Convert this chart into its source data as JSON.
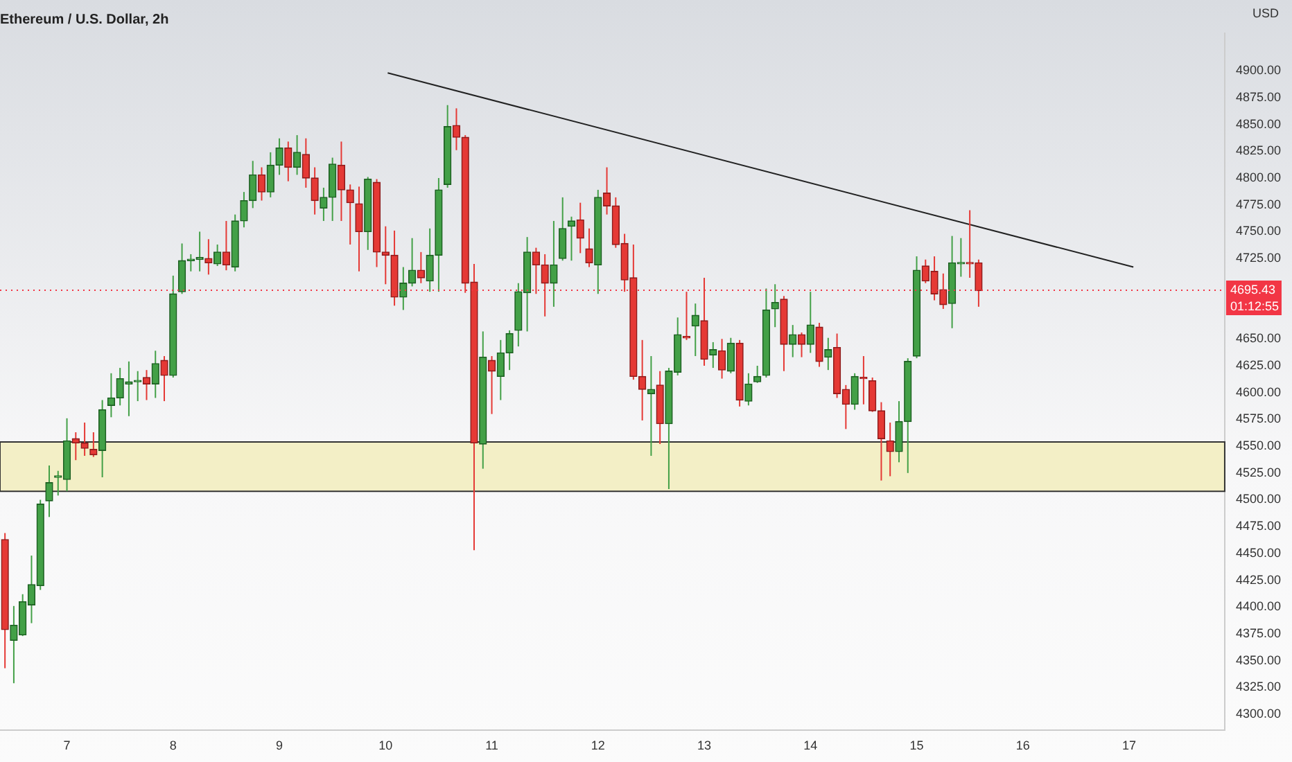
{
  "chart_data": {
    "type": "candlestick",
    "title": "Ethereum / U.S. Dollar, 2h",
    "ylabel": "USD",
    "x": [
      6.4167,
      6.5,
      6.5833,
      6.6667,
      6.75,
      6.8333,
      6.9167,
      7,
      7.0833,
      7.1667,
      7.25,
      7.3333,
      7.4167,
      7.5,
      7.5833,
      7.6667,
      7.75,
      7.8333,
      7.9167,
      8,
      8.0833,
      8.1667,
      8.25,
      8.3333,
      8.4167,
      8.5,
      8.5833,
      8.6667,
      8.75,
      8.8333,
      8.9167,
      9,
      9.0833,
      9.1667,
      9.25,
      9.3333,
      9.4167,
      9.5,
      9.5833,
      9.6667,
      9.75,
      9.8333,
      9.9167,
      10,
      10.0833,
      10.1667,
      10.25,
      10.3333,
      10.4167,
      10.5,
      10.5833,
      10.6667,
      10.75,
      10.8333,
      10.9167,
      11,
      11.0833,
      11.1667,
      11.25,
      11.3333,
      11.4167,
      11.5,
      11.5833,
      11.6667,
      11.75,
      11.8333,
      11.9167,
      12,
      12.0833,
      12.1667,
      12.25,
      12.3333,
      12.4167,
      12.5,
      12.5833,
      12.6667,
      12.75,
      12.8333,
      12.9167,
      13,
      13.0833,
      13.1667,
      13.25,
      13.3333,
      13.4167,
      13.5,
      13.5833,
      13.6667,
      13.75,
      13.8333,
      13.9167,
      14,
      14.0833,
      14.1667,
      14.25,
      14.3333,
      14.4167,
      14.5,
      14.5833,
      14.6667,
      14.75,
      14.8333,
      14.9167,
      15,
      15.0833,
      15.1667,
      15.25,
      15.3333,
      15.4167,
      15.5,
      15.5833
    ],
    "ohlc": [
      [
        4463,
        4469,
        4343,
        4379
      ],
      [
        4369,
        4401,
        4329,
        4383
      ],
      [
        4374,
        4412,
        4373,
        4405
      ],
      [
        4402,
        4448,
        4385,
        4421
      ],
      [
        4420,
        4500,
        4416,
        4496
      ],
      [
        4499,
        4532,
        4484,
        4516
      ],
      [
        4521,
        4527,
        4504,
        4522
      ],
      [
        4519,
        4576,
        4508,
        4555
      ],
      [
        4557,
        4563,
        4537,
        4553
      ],
      [
        4553,
        4572,
        4541,
        4548
      ],
      [
        4547,
        4563,
        4540,
        4542
      ],
      [
        4546,
        4593,
        4521,
        4584
      ],
      [
        4588,
        4618,
        4577,
        4595
      ],
      [
        4595,
        4623,
        4588,
        4613
      ],
      [
        4608,
        4629,
        4578,
        4610
      ],
      [
        4610,
        4620,
        4592,
        4611
      ],
      [
        4614,
        4621,
        4593,
        4608
      ],
      [
        4608,
        4639,
        4595,
        4627
      ],
      [
        4630,
        4634,
        4592,
        4616
      ],
      [
        4616,
        4709,
        4614,
        4692
      ],
      [
        4694,
        4739,
        4692,
        4723
      ],
      [
        4723,
        4729,
        4713,
        4724
      ],
      [
        4724,
        4750,
        4713,
        4726
      ],
      [
        4725,
        4743,
        4710,
        4721
      ],
      [
        4720,
        4738,
        4718,
        4731
      ],
      [
        4731,
        4760,
        4714,
        4719
      ],
      [
        4717,
        4766,
        4713,
        4760
      ],
      [
        4760,
        4787,
        4754,
        4779
      ],
      [
        4779,
        4816,
        4772,
        4803
      ],
      [
        4803,
        4810,
        4779,
        4787
      ],
      [
        4787,
        4824,
        4782,
        4812
      ],
      [
        4812,
        4837,
        4803,
        4828
      ],
      [
        4828,
        4834,
        4797,
        4810
      ],
      [
        4810,
        4840,
        4803,
        4824
      ],
      [
        4822,
        4837,
        4791,
        4800
      ],
      [
        4800,
        4810,
        4766,
        4779
      ],
      [
        4772,
        4791,
        4760,
        4782
      ],
      [
        4782,
        4819,
        4760,
        4813
      ],
      [
        4812,
        4834,
        4760,
        4789
      ],
      [
        4789,
        4794,
        4738,
        4777
      ],
      [
        4776,
        4792,
        4713,
        4750
      ],
      [
        4750,
        4801,
        4733,
        4799
      ],
      [
        4796,
        4799,
        4717,
        4731
      ],
      [
        4731,
        4755,
        4701,
        4728
      ],
      [
        4728,
        4751,
        4681,
        4689
      ],
      [
        4689,
        4717,
        4677,
        4702
      ],
      [
        4702,
        4744,
        4699,
        4714
      ],
      [
        4714,
        4731,
        4702,
        4707
      ],
      [
        4704,
        4753,
        4694,
        4728
      ],
      [
        4728,
        4800,
        4694,
        4789
      ],
      [
        4794,
        4868,
        4791,
        4848
      ],
      [
        4849,
        4865,
        4826,
        4838
      ],
      [
        4838,
        4840,
        4693,
        4702
      ],
      [
        4703,
        4720,
        4453,
        4553
      ],
      [
        4552,
        4657,
        4529,
        4633
      ],
      [
        4630,
        4634,
        4580,
        4620
      ],
      [
        4615,
        4649,
        4593,
        4637
      ],
      [
        4637,
        4658,
        4621,
        4655
      ],
      [
        4658,
        4702,
        4643,
        4694
      ],
      [
        4693,
        4745,
        4657,
        4731
      ],
      [
        4731,
        4735,
        4692,
        4719
      ],
      [
        4719,
        4729,
        4671,
        4702
      ],
      [
        4702,
        4760,
        4680,
        4719
      ],
      [
        4725,
        4782,
        4723,
        4753
      ],
      [
        4755,
        4764,
        4723,
        4760
      ],
      [
        4761,
        4777,
        4730,
        4744
      ],
      [
        4734,
        4753,
        4717,
        4721
      ],
      [
        4719,
        4789,
        4692,
        4782
      ],
      [
        4786,
        4810,
        4766,
        4774
      ],
      [
        4774,
        4782,
        4735,
        4738
      ],
      [
        4739,
        4748,
        4694,
        4705
      ],
      [
        4707,
        4738,
        4612,
        4615
      ],
      [
        4615,
        4649,
        4574,
        4603
      ],
      [
        4599,
        4634,
        4541,
        4603
      ],
      [
        4607,
        4620,
        4552,
        4571
      ],
      [
        4571,
        4623,
        4510,
        4620
      ],
      [
        4619,
        4670,
        4616,
        4654
      ],
      [
        4652,
        4694,
        4649,
        4651
      ],
      [
        4662,
        4683,
        4634,
        4672
      ],
      [
        4667,
        4707,
        4625,
        4631
      ],
      [
        4635,
        4647,
        4623,
        4640
      ],
      [
        4639,
        4650,
        4613,
        4621
      ],
      [
        4620,
        4651,
        4618,
        4646
      ],
      [
        4646,
        4649,
        4587,
        4593
      ],
      [
        4592,
        4618,
        4588,
        4608
      ],
      [
        4610,
        4625,
        4609,
        4615
      ],
      [
        4616,
        4697,
        4614,
        4677
      ],
      [
        4678,
        4701,
        4661,
        4684
      ],
      [
        4687,
        4690,
        4620,
        4645
      ],
      [
        4645,
        4663,
        4633,
        4654
      ],
      [
        4654,
        4656,
        4633,
        4645
      ],
      [
        4645,
        4694,
        4637,
        4663
      ],
      [
        4661,
        4665,
        4624,
        4629
      ],
      [
        4633,
        4651,
        4621,
        4640
      ],
      [
        4642,
        4655,
        4595,
        4599
      ],
      [
        4603,
        4607,
        4566,
        4589
      ],
      [
        4589,
        4618,
        4584,
        4615
      ],
      [
        4614,
        4634,
        4589,
        4613
      ],
      [
        4611,
        4614,
        4582,
        4583
      ],
      [
        4583,
        4591,
        4518,
        4557
      ],
      [
        4555,
        4572,
        4522,
        4545
      ],
      [
        4545,
        4592,
        4535,
        4573
      ],
      [
        4573,
        4632,
        4525,
        4629
      ],
      [
        4634,
        4727,
        4632,
        4714
      ],
      [
        4718,
        4724,
        4702,
        4704
      ],
      [
        4713,
        4727,
        4686,
        4692
      ],
      [
        4696,
        4711,
        4678,
        4682
      ],
      [
        4683,
        4746,
        4660,
        4721
      ],
      [
        4720,
        4744,
        4708,
        4721
      ],
      [
        4721,
        4770,
        4707,
        4720
      ],
      [
        4721,
        4724,
        4680,
        4695
      ]
    ],
    "series": [
      {
        "type": "line",
        "x": [
          10.02,
          17.04
        ],
        "values": [
          4898,
          4717
        ],
        "color": "#222222"
      }
    ],
    "bands": [
      {
        "axis": "y",
        "from": 4508,
        "to": 4554,
        "color": "#f3efc6"
      }
    ],
    "ref_lines": [
      {
        "axis": "y",
        "value": 4695.43,
        "label": "4695.43",
        "color": "#f23645",
        "line_style": "dotted"
      }
    ],
    "annotations": [
      "01:12:55"
    ],
    "xlim": [
      6.37,
      17.9
    ],
    "xticks": [
      7,
      8,
      9,
      10,
      11,
      12,
      13,
      14,
      15,
      16,
      17
    ],
    "ylim": [
      4285,
      4935
    ],
    "yticks": [
      {
        "value": 4300,
        "label": "4300.00"
      },
      {
        "value": 4325,
        "label": "4325.00"
      },
      {
        "value": 4350,
        "label": "4350.00"
      },
      {
        "value": 4375,
        "label": "4375.00"
      },
      {
        "value": 4400,
        "label": "4400.00"
      },
      {
        "value": 4425,
        "label": "4425.00"
      },
      {
        "value": 4450,
        "label": "4450.00"
      },
      {
        "value": 4475,
        "label": "4475.00"
      },
      {
        "value": 4500,
        "label": "4500.00"
      },
      {
        "value": 4525,
        "label": "4525.00"
      },
      {
        "value": 4550,
        "label": "4550.00"
      },
      {
        "value": 4575,
        "label": "4575.00"
      },
      {
        "value": 4600,
        "label": "4600.00"
      },
      {
        "value": 4625,
        "label": "4625.00"
      },
      {
        "value": 4650,
        "label": "4650.00"
      },
      {
        "value": 4725,
        "label": "4725.00"
      },
      {
        "value": 4750,
        "label": "4750.00"
      },
      {
        "value": 4775,
        "label": "4775.00"
      },
      {
        "value": 4800,
        "label": "4800.00"
      },
      {
        "value": 4825,
        "label": "4825.00"
      },
      {
        "value": 4850,
        "label": "4850.00"
      },
      {
        "value": 4875,
        "label": "4875.00"
      },
      {
        "value": 4900,
        "label": "4900.00"
      }
    ],
    "grid": false,
    "legend": false
  }
}
